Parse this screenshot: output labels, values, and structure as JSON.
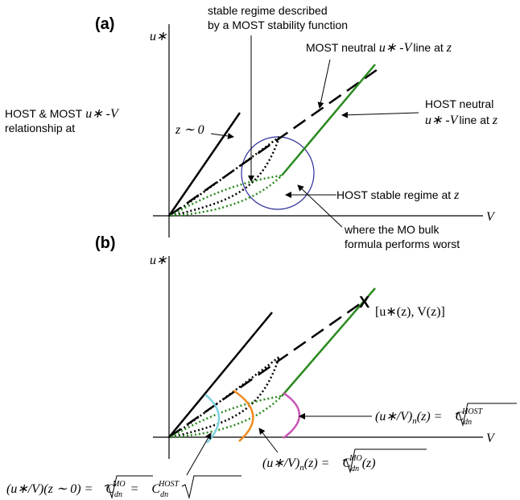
{
  "panel_a": {
    "label": "(a)",
    "y_axis": "u∗",
    "x_axis": "V",
    "stable_regime": [
      "stable regime described",
      "by a MOST stability function"
    ],
    "most_neutral": [
      "MOST neutral",
      "u∗ -V",
      "line at",
      "z"
    ],
    "host_neutral": [
      "HOST neutral",
      "u∗ -V",
      "line at",
      "z"
    ],
    "host_most": [
      "HOST & MOST",
      "u∗ -V",
      "relationship at",
      "z ∼ 0"
    ],
    "host_stable": [
      "HOST stable regime at",
      "z"
    ],
    "mo_bulk": [
      "where the MO bulk",
      "formula performs worst"
    ]
  },
  "panel_b": {
    "label": "(b)",
    "y_axis": "u∗",
    "x_axis": "V",
    "point_marker": "X",
    "point_label": "[u∗(z), V(z)]",
    "formula_host": [
      "(u∗/V)",
      "n",
      "(z) =",
      "C",
      "dn",
      "HOST"
    ],
    "formula_mo": [
      "(u∗/V)",
      "n",
      "(z) =",
      "C",
      "dn",
      "MO",
      "(z)"
    ],
    "formula_z0": [
      "(u∗/V)(z ∼ 0) =",
      "C",
      "dn",
      "MO",
      "=",
      "C",
      "dn",
      "HOST"
    ]
  }
}
